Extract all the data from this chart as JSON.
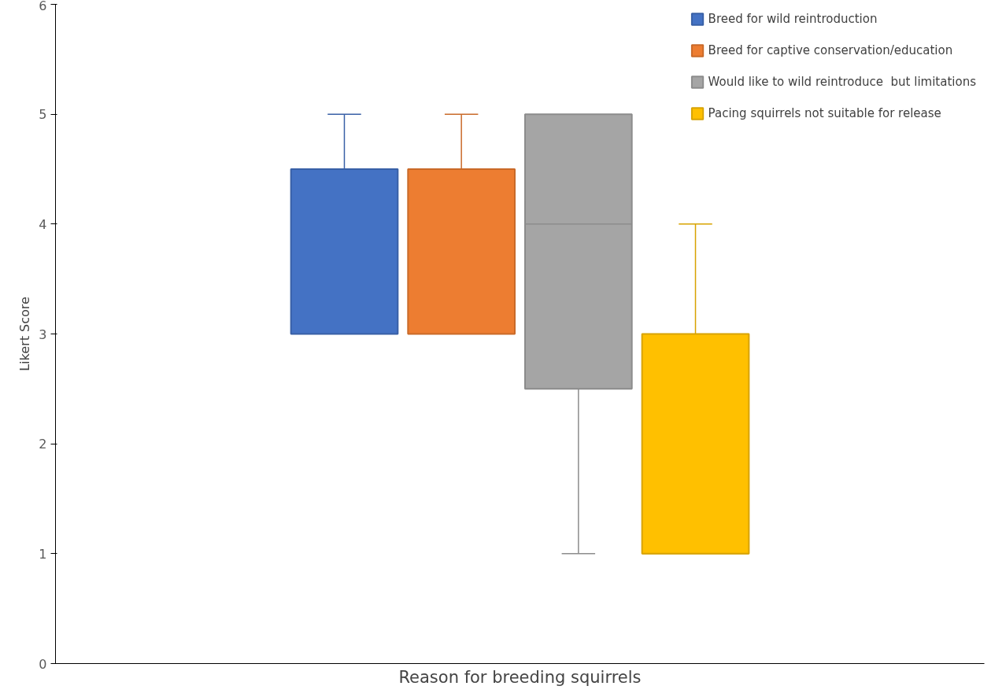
{
  "chart_data": {
    "type": "box",
    "xlabel": "Reason for breeding squirrels",
    "ylabel": "Likert Score",
    "categories": [
      null
    ],
    "ylim": [
      0,
      6
    ],
    "yticks": [
      0,
      1,
      2,
      3,
      4,
      5,
      6
    ],
    "tick_labels": "y",
    "legend": "top right",
    "series": [
      {
        "name": "Breed for wild reintroduction",
        "color": "#4472c4",
        "boxes": [
          {
            "low": 3,
            "q1": 3,
            "median": 4.5,
            "q3": 4.5,
            "high": 5
          }
        ]
      },
      {
        "name": "Breed for captive conservation/education",
        "color": "#ed7d31",
        "boxes": [
          {
            "low": 3,
            "q1": 3,
            "median": 4.5,
            "q3": 4.5,
            "high": 5
          }
        ]
      },
      {
        "name": "Would like to wild reintroduce  but limitations",
        "color": "#a5a5a5",
        "boxes": [
          {
            "low": 1,
            "q1": 2.5,
            "median": 4,
            "q3": 5,
            "high": 5
          }
        ]
      },
      {
        "name": "Pacing squirrels not suitable for release",
        "color": "#ffc000",
        "boxes": [
          {
            "low": 1,
            "q1": 1,
            "median": 1,
            "q3": 3,
            "high": 4
          }
        ]
      }
    ]
  }
}
